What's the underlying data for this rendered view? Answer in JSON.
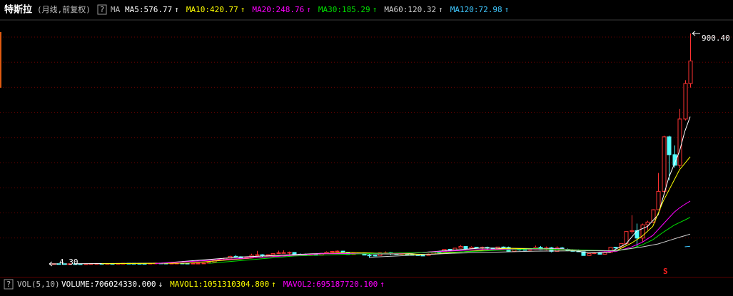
{
  "chart_data": {
    "type": "candlestick",
    "title": "特斯拉",
    "subtitle": "(月线,前复权)",
    "help": "?",
    "indicator": "MA",
    "up_color": "#ff3232",
    "down_color": "#54ffff",
    "xlim": [
      -10,
      127
    ],
    "ylim": [
      -45.6,
      975
    ],
    "candles": [
      [
        4.8,
        5.4,
        4.3,
        5.1
      ],
      [
        5.1,
        5.6,
        4.8,
        5.0
      ],
      [
        5.0,
        5.3,
        4.6,
        4.7
      ],
      [
        4.7,
        5.0,
        4.5,
        4.8
      ],
      [
        4.8,
        5.2,
        4.5,
        4.6
      ],
      [
        4.6,
        4.9,
        4.4,
        4.5
      ],
      [
        4.5,
        4.8,
        4.5,
        4.7
      ],
      [
        4.7,
        5.6,
        4.6,
        5.4
      ],
      [
        5.4,
        6.0,
        5.2,
        5.8
      ],
      [
        5.8,
        6.2,
        5.4,
        5.6
      ],
      [
        5.6,
        6.0,
        5.3,
        5.9
      ],
      [
        5.9,
        6.3,
        5.5,
        5.7
      ],
      [
        5.7,
        6.2,
        5.4,
        6.1
      ],
      [
        6.1,
        6.8,
        5.9,
        6.6
      ],
      [
        6.6,
        7.0,
        6.2,
        6.4
      ],
      [
        6.4,
        6.9,
        6.0,
        6.2
      ],
      [
        6.2,
        6.6,
        5.8,
        6.0
      ],
      [
        6.0,
        6.4,
        5.6,
        5.9
      ],
      [
        5.9,
        6.8,
        5.8,
        6.7
      ],
      [
        6.7,
        7.6,
        6.5,
        7.4
      ],
      [
        7.4,
        7.8,
        6.8,
        7.0
      ],
      [
        7.0,
        7.4,
        6.4,
        6.6
      ],
      [
        6.6,
        7.0,
        6.2,
        6.9
      ],
      [
        6.9,
        7.5,
        6.7,
        7.2
      ],
      [
        7.2,
        7.6,
        6.5,
        6.8
      ],
      [
        6.8,
        7.3,
        6.4,
        6.6
      ],
      [
        6.6,
        7.1,
        6.2,
        6.9
      ],
      [
        6.9,
        7.4,
        6.6,
        7.0
      ],
      [
        7.0,
        7.6,
        6.8,
        7.5
      ],
      [
        7.5,
        11.0,
        7.3,
        10.8
      ],
      [
        10.8,
        19.5,
        10.5,
        19.2
      ],
      [
        19.2,
        24.0,
        18.0,
        21.5
      ],
      [
        21.5,
        27.5,
        20.8,
        26.8
      ],
      [
        26.8,
        36.0,
        26.0,
        33.8
      ],
      [
        33.8,
        39.0,
        29.5,
        32.0
      ],
      [
        32.0,
        34.0,
        23.0,
        25.5
      ],
      [
        25.5,
        30.5,
        24.0,
        30.0
      ],
      [
        30.0,
        44.0,
        29.5,
        38.0
      ],
      [
        38.0,
        55.0,
        37.0,
        40.0
      ],
      [
        40.0,
        42.0,
        30.5,
        36.0
      ],
      [
        36.0,
        42.5,
        35.0,
        40.0
      ],
      [
        40.0,
        46.0,
        38.5,
        44.8
      ],
      [
        44.8,
        55.5,
        44.0,
        47.5
      ],
      [
        47.5,
        57.0,
        45.0,
        48.0
      ],
      [
        48.0,
        52.0,
        42.0,
        49.0
      ],
      [
        49.0,
        50.0,
        38.5,
        42.0
      ],
      [
        42.0,
        45.0,
        39.0,
        40.5
      ],
      [
        40.5,
        44.5,
        36.0,
        38.5
      ],
      [
        38.5,
        45.0,
        37.5,
        40.8
      ],
      [
        40.8,
        43.5,
        38.0,
        38.4
      ],
      [
        38.4,
        46.0,
        37.5,
        45.0
      ],
      [
        45.0,
        53.0,
        44.0,
        50.0
      ],
      [
        50.0,
        54.5,
        48.5,
        53.0
      ],
      [
        53.0,
        56.5,
        50.0,
        54.0
      ],
      [
        54.0,
        55.5,
        48.0,
        49.5
      ],
      [
        49.5,
        50.5,
        40.0,
        41.0
      ],
      [
        41.0,
        48.0,
        41.0,
        46.5
      ],
      [
        46.5,
        48.5,
        44.0,
        47.5
      ],
      [
        47.5,
        48.0,
        38.0,
        38.6
      ],
      [
        38.6,
        42.0,
        28.2,
        38.0
      ],
      [
        38.0,
        40.5,
        33.0,
        37.0
      ],
      [
        37.0,
        50.0,
        36.5,
        48.0
      ],
      [
        48.0,
        53.0,
        47.0,
        48.0
      ],
      [
        48.0,
        50.0,
        39.0,
        44.0
      ],
      [
        44.0,
        46.0,
        41.0,
        42.0
      ],
      [
        42.0,
        47.5,
        41.5,
        47.0
      ],
      [
        47.0,
        47.5,
        40.0,
        40.5
      ],
      [
        40.5,
        43.0,
        38.0,
        39.5
      ],
      [
        39.5,
        40.5,
        37.0,
        38.0
      ],
      [
        38.0,
        40.5,
        35.5,
        37.5
      ],
      [
        37.5,
        44.5,
        37.0,
        42.5
      ],
      [
        42.5,
        50.5,
        42.0,
        50.2
      ],
      [
        50.2,
        55.0,
        48.0,
        49.8
      ],
      [
        49.8,
        62.0,
        49.0,
        61.0
      ],
      [
        61.0,
        63.0,
        55.5,
        58.0
      ],
      [
        58.0,
        66.0,
        57.5,
        65.5
      ],
      [
        65.5,
        77.5,
        65.0,
        72.5
      ],
      [
        72.5,
        72.8,
        61.0,
        64.0
      ],
      [
        64.0,
        72.5,
        63.0,
        69.5
      ],
      [
        69.5,
        70.0,
        65.0,
        65.5
      ],
      [
        65.5,
        72.0,
        61.0,
        68.5
      ],
      [
        68.5,
        71.5,
        60.0,
        66.0
      ],
      [
        66.0,
        66.5,
        59.0,
        62.0
      ],
      [
        62.0,
        70.0,
        61.5,
        70.0
      ],
      [
        70.0,
        72.0,
        66.0,
        68.5
      ],
      [
        68.5,
        71.5,
        51.0,
        53.5
      ],
      [
        53.5,
        61.5,
        50.5,
        61.0
      ],
      [
        61.0,
        63.5,
        56.0,
        60.0
      ],
      [
        60.0,
        62.5,
        57.5,
        59.5
      ],
      [
        59.5,
        62.0,
        55.0,
        60.5
      ],
      [
        60.5,
        75.5,
        59.5,
        68.5
      ],
      [
        68.5,
        74.0,
        58.5,
        60.3
      ],
      [
        60.3,
        72.0,
        57.0,
        67.0
      ],
      [
        67.0,
        70.0,
        49.5,
        53.0
      ],
      [
        53.0,
        72.5,
        53.0,
        66.5
      ],
      [
        66.5,
        71.0,
        60.0,
        61.0
      ],
      [
        61.0,
        64.0,
        54.0,
        56.0
      ],
      [
        56.0,
        61.5,
        52.5,
        55.0
      ],
      [
        55.0,
        60.5,
        50.5,
        51.5
      ],
      [
        51.5,
        53.0,
        37.0,
        37.0
      ],
      [
        37.0,
        45.5,
        35.5,
        44.7
      ],
      [
        44.7,
        50.5,
        42.5,
        48.0
      ],
      [
        48.0,
        51.0,
        40.5,
        42.0
      ],
      [
        42.0,
        53.0,
        42.0,
        48.5
      ],
      [
        48.5,
        70.0,
        47.0,
        69.0
      ],
      [
        69.0,
        70.5,
        63.5,
        67.0
      ],
      [
        67.0,
        84.0,
        66.5,
        83.7
      ],
      [
        83.7,
        131.0,
        80.0,
        130.1
      ],
      [
        130.1,
        194.0,
        122.0,
        133.6
      ],
      [
        133.6,
        161.0,
        70.0,
        104.8
      ],
      [
        104.8,
        161.0,
        90.0,
        156.4
      ],
      [
        156.4,
        172.0,
        136.0,
        167.0
      ],
      [
        167.0,
        217.0,
        164.0,
        215.0
      ],
      [
        215.0,
        358.0,
        215.0,
        286.2
      ],
      [
        286.2,
        502.5,
        273.0,
        498.3
      ],
      [
        498.3,
        502.5,
        330.0,
        429.0
      ],
      [
        429.0,
        465.0,
        379.0,
        388.0
      ],
      [
        388.0,
        607.0,
        376.0,
        567.6
      ],
      [
        567.6,
        718.7,
        562.0,
        705.7
      ],
      [
        705.7,
        900.4,
        690.0,
        793.5
      ]
    ],
    "series": [
      {
        "name": "MA5:576.77",
        "arrow": "↑",
        "color": "#ffffff",
        "x": [
          4,
          20,
          35,
          50,
          65,
          80,
          95,
          100,
          104,
          107,
          109,
          111,
          113,
          115,
          117,
          118,
          119
        ],
        "values": [
          4.9,
          7.0,
          31,
          45,
          43,
          66,
          63,
          47,
          50,
          82,
          132,
          150,
          195,
          340,
          442,
          520,
          576.77
        ]
      },
      {
        "name": "MA10:420.77",
        "arrow": "↑",
        "color": "#ffff00",
        "x": [
          9,
          25,
          40,
          55,
          70,
          85,
          100,
          105,
          108,
          110,
          112,
          114,
          116,
          117,
          118,
          119
        ],
        "values": [
          5.2,
          7.0,
          32,
          49,
          41,
          65,
          57,
          54,
          85,
          112,
          150,
          250,
          330,
          370,
          395,
          420.77
        ]
      },
      {
        "name": "MA20:248.76",
        "arrow": "↑",
        "color": "#ff00ff",
        "x": [
          19,
          35,
          50,
          65,
          80,
          95,
          105,
          108,
          110,
          112,
          114,
          116,
          117,
          118,
          119
        ],
        "values": [
          5.8,
          25,
          44,
          45,
          60,
          62,
          52,
          70,
          88,
          115,
          160,
          205,
          222,
          236,
          248.76
        ]
      },
      {
        "name": "MA30:185.29",
        "arrow": "↑",
        "color": "#00e000",
        "x": [
          29,
          45,
          60,
          75,
          90,
          105,
          108,
          110,
          112,
          114,
          116,
          117,
          118,
          119
        ],
        "values": [
          6.4,
          35,
          45,
          50,
          63,
          55,
          64,
          78,
          98,
          128,
          155,
          165,
          175,
          185.29
        ]
      },
      {
        "name": "MA60:120.32",
        "arrow": "↑",
        "color": "#d0d0d0",
        "x": [
          59,
          75,
          90,
          105,
          110,
          113,
          115,
          117,
          118,
          119
        ],
        "values": [
          30,
          46,
          54,
          56,
          70,
          82,
          95,
          108,
          114,
          120.32
        ]
      },
      {
        "name": "MA120:72.98",
        "arrow": "↑",
        "color": "#3fc8ff",
        "x": [
          118,
          119
        ],
        "values": [
          71.0,
          72.98
        ]
      }
    ],
    "annotations": [
      {
        "text": "900.40",
        "x": 119,
        "y": 900.4
      },
      {
        "text": "4.30",
        "x": 0,
        "y": 4.3
      }
    ],
    "signal": {
      "text": "S",
      "color": "#ff2020"
    }
  },
  "volume_panel": {
    "help": "?",
    "title": "VOL(5,10)",
    "series": [
      {
        "name": "VOLUME:706024330.000",
        "arrow": "↓",
        "color": "#ffffff"
      },
      {
        "name": "MAVOL1:1051310304.800",
        "arrow": "↑",
        "color": "#ffff00"
      },
      {
        "name": "MAVOL2:695187720.100",
        "arrow": "↑",
        "color": "#ff00ff"
      }
    ]
  }
}
